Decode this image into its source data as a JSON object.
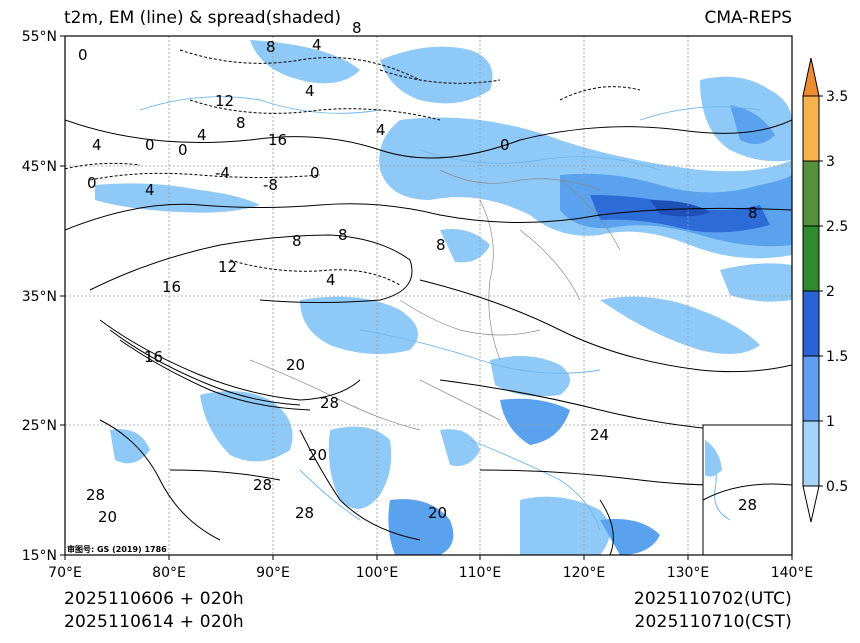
{
  "header": {
    "title_left": "t2m, EM (line) & spread(shaded)",
    "title_right": "CMA-REPS"
  },
  "map": {
    "lat_labels": [
      "55°N",
      "45°N",
      "35°N",
      "25°N",
      "15°N"
    ],
    "lon_labels": [
      "70°E",
      "80°E",
      "90°E",
      "100°E",
      "110°E",
      "120°E",
      "130°E",
      "140°E"
    ],
    "contour_labels": [
      "0",
      "8",
      "4",
      "8",
      "12",
      "4",
      "8",
      "16",
      "4",
      "0",
      "4",
      "0",
      "-4",
      "-8",
      "0",
      "4",
      "0",
      "4",
      "8",
      "8",
      "12",
      "4",
      "16",
      "0",
      "8",
      "8",
      "16",
      "20",
      "28",
      "20",
      "28",
      "28",
      "28",
      "20",
      "20",
      "24",
      "28"
    ],
    "credit": "审图号: GS (2019) 1786",
    "colors": {
      "shade_light": "#8ec9f7",
      "shade_mid": "#5aa2ee",
      "shade_dark": "#2d6bd6"
    }
  },
  "colorbar": {
    "ticks": [
      "0.5",
      "1",
      "1.5",
      "2",
      "2.5",
      "3",
      "3.5"
    ],
    "colors": [
      "#a6d3fa",
      "#5f9ef0",
      "#2a64d4",
      "#2e8b2e",
      "#55903c",
      "#f7b24c",
      "#ec8b30"
    ]
  },
  "footer": {
    "init_utc": "2025110606  +  020h",
    "init_cst": "2025110614  +  020h",
    "valid_utc": "2025110702(UTC)",
    "valid_cst": "2025110710(CST)"
  }
}
